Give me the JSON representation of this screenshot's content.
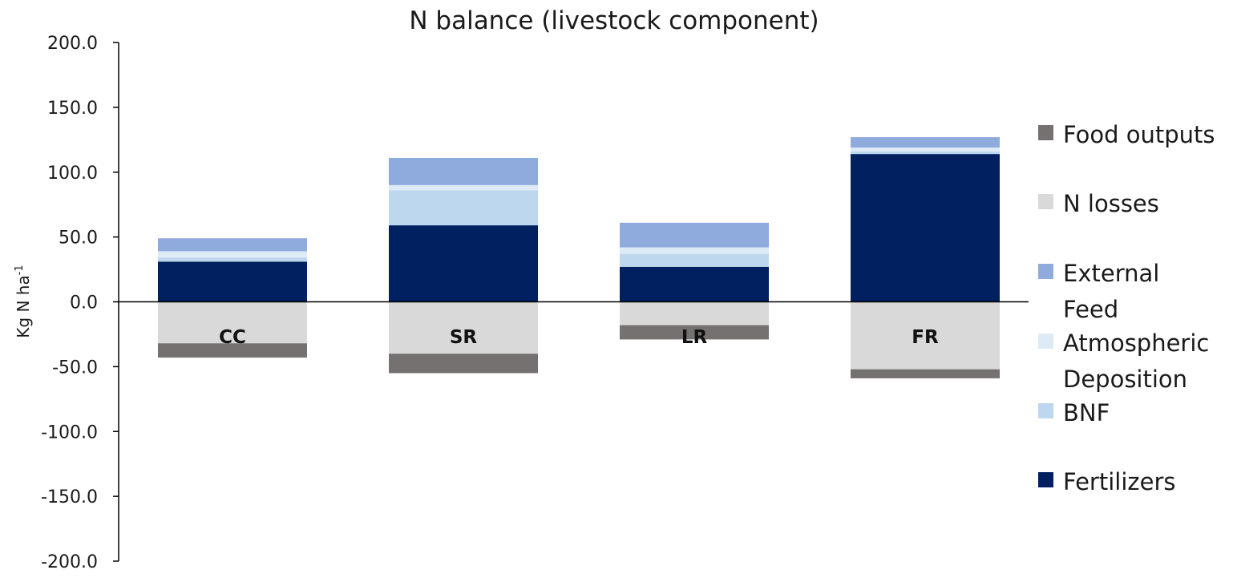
{
  "chart_data": {
    "type": "bar",
    "stacked": true,
    "title": "N balance (livestock component)",
    "xlabel": "",
    "ylabel": "Kg N ha",
    "ylabel_superscript": "-1",
    "ylim": [
      -200,
      200
    ],
    "yticks": [
      "200.0",
      "150.0",
      "100.0",
      "50.0",
      "0.0",
      "-50.0",
      "-100.0",
      "-150.0",
      "-200.0"
    ],
    "ytick_values": [
      200,
      150,
      100,
      50,
      0,
      -50,
      -100,
      -150,
      -200
    ],
    "categories": [
      "CC",
      "SR",
      "LR",
      "FR"
    ],
    "grid": false,
    "legend_position": "right",
    "series": [
      {
        "name": "Fertilizers",
        "color": "#002060",
        "values": [
          31,
          59,
          27,
          114
        ],
        "direction": "positive"
      },
      {
        "name": "BNF",
        "color": "#bdd7ee",
        "values": [
          3,
          27,
          10,
          2
        ],
        "direction": "positive"
      },
      {
        "name": "Atmospheric Deposition",
        "color": "#ddebf7",
        "values": [
          5,
          4,
          5,
          3
        ],
        "direction": "positive"
      },
      {
        "name": "External Feed",
        "color": "#8faadc",
        "values": [
          10,
          21,
          19,
          8
        ],
        "direction": "positive"
      },
      {
        "name": "N losses",
        "color": "#d9d9d9",
        "values": [
          -32,
          -40,
          -18,
          -52
        ],
        "direction": "negative"
      },
      {
        "name": "Food outputs",
        "color": "#767171",
        "values": [
          -11,
          -15,
          -11,
          -7
        ],
        "direction": "negative"
      }
    ],
    "legend": [
      {
        "lines": [
          "Food outputs"
        ],
        "color": "#767171"
      },
      {
        "lines": [
          "N losses"
        ],
        "color": "#d9d9d9"
      },
      {
        "lines": [
          "External",
          "Feed"
        ],
        "color": "#8faadc"
      },
      {
        "lines": [
          "Atmospheric",
          "Deposition"
        ],
        "color": "#ddebf7"
      },
      {
        "lines": [
          "BNF"
        ],
        "color": "#bdd7ee"
      },
      {
        "lines": [
          "Fertilizers"
        ],
        "color": "#002060"
      }
    ]
  }
}
